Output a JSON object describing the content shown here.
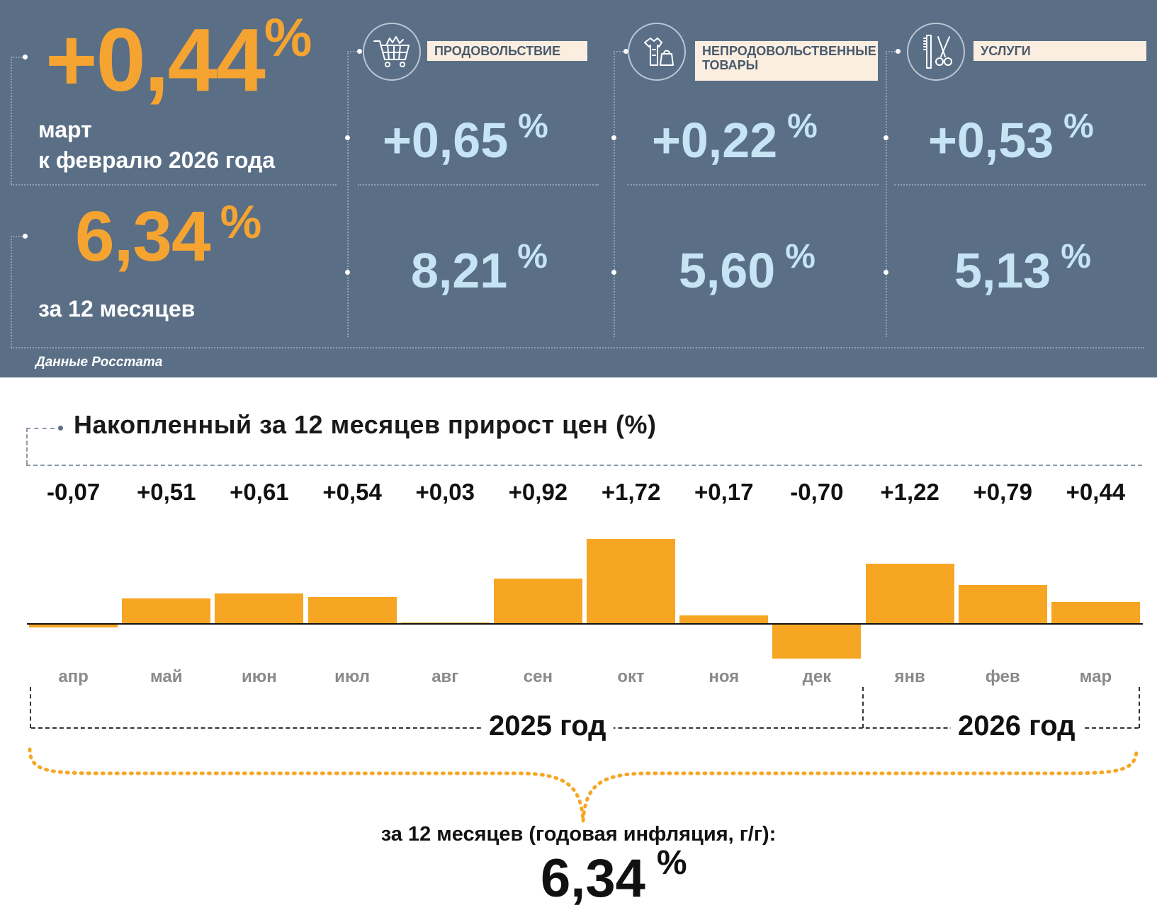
{
  "summary": {
    "month_value": "+0,44",
    "month_unit": "%",
    "month_label_line1": "март",
    "month_label_line2": "к февралю 2026 года",
    "year_value": "6,34",
    "year_unit": "%",
    "year_label": "за 12 месяцев",
    "source": "Данные Росстата"
  },
  "categories": [
    {
      "icon": "shopping-cart-icon",
      "label": "ПРОДОВОЛЬСТВИЕ",
      "month": "+0,65",
      "year": "8,21",
      "unit": "%"
    },
    {
      "icon": "clothing-bag-icon",
      "label_line1": "НЕПРОДОВОЛЬСТВЕННЫЕ",
      "label_line2": "ТОВАРЫ",
      "month": "+0,22",
      "year": "5,60",
      "unit": "%"
    },
    {
      "icon": "comb-scissors-icon",
      "label": "УСЛУГИ",
      "month": "+0,53",
      "year": "5,13",
      "unit": "%"
    }
  ],
  "chart_data": {
    "type": "bar",
    "title": "Накопленный за 12 месяцев прирост цен (%)",
    "categories": [
      "апр",
      "май",
      "июн",
      "июл",
      "авг",
      "сен",
      "окт",
      "ноя",
      "дек",
      "янв",
      "фев",
      "мар"
    ],
    "values": [
      -0.07,
      0.51,
      0.61,
      0.54,
      0.03,
      0.92,
      1.72,
      0.17,
      -0.7,
      1.22,
      0.79,
      0.44
    ],
    "value_labels": [
      "-0,07",
      "+0,51",
      "+0,61",
      "+0,54",
      "+0,03",
      "+0,92",
      "+1,72",
      "+0,17",
      "-0,70",
      "+1,22",
      "+0,79",
      "+0,44"
    ],
    "groups": [
      "2025 год",
      "2026 год"
    ],
    "bar_color": "#f6a623",
    "grid": false
  },
  "footer": {
    "caption": "за 12 месяцев (годовая инфляция, г/г):",
    "value": "6,34",
    "unit": "%"
  },
  "colors": {
    "panel_bg": "#5a6f86",
    "accent_orange": "#f6a431",
    "light_blue": "#c6e4f4",
    "tag_bg": "#fbeee0"
  }
}
